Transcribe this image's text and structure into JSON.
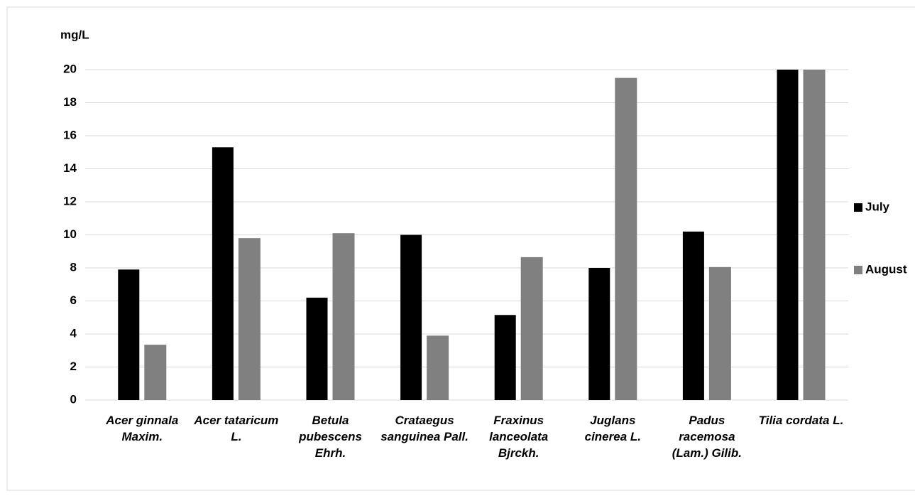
{
  "chart_data": {
    "type": "bar",
    "y_label": "mg/L",
    "categories": [
      "Acer ginnala Maxim.",
      "Acer tataricum L.",
      "Betula pubescens Ehrh.",
      "Crataegus sanguinea Pall.",
      "Fraxinus lanceolata Bjrckh.",
      "Juglans cinerea L.",
      "Padus racemosa (Lam.) Gilib.",
      "Tilia cordata L."
    ],
    "series": [
      {
        "name": "July",
        "color": "#000000",
        "values": [
          7.9,
          15.3,
          6.2,
          10,
          5.15,
          8.0,
          10.2,
          20
        ]
      },
      {
        "name": "August",
        "color": "#808080",
        "values": [
          3.35,
          9.8,
          10.1,
          3.9,
          8.65,
          19.5,
          8.05,
          20
        ]
      }
    ],
    "ylim": [
      0,
      20
    ],
    "yticks": [
      0,
      2,
      4,
      6,
      8,
      10,
      12,
      14,
      16,
      18,
      20
    ],
    "grid": true,
    "legend": "right"
  }
}
